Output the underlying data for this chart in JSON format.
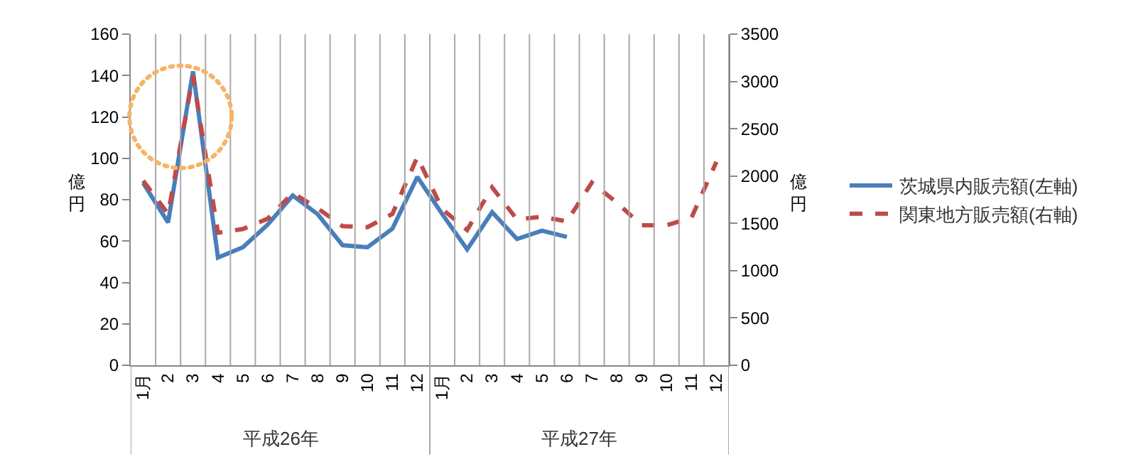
{
  "chart_data": {
    "type": "line",
    "categories": [
      "1月",
      "2",
      "3",
      "4",
      "5",
      "6",
      "7",
      "8",
      "9",
      "10",
      "11",
      "12",
      "1月",
      "2",
      "3",
      "4",
      "5",
      "6",
      "7",
      "8",
      "9",
      "10",
      "11",
      "12"
    ],
    "series": [
      {
        "name": "茨城県内販売額(左軸)",
        "color": "#4a7ebb",
        "values": [
          88,
          69,
          142,
          52,
          57,
          68,
          82,
          73,
          58,
          57,
          66,
          91,
          73,
          56,
          74,
          61,
          65,
          62,
          null,
          null,
          null,
          null,
          null,
          null
        ]
      },
      {
        "name": "関東地方販売額(右軸)",
        "color": "#be4b48",
        "axis": "y2",
        "line_style": "dashed",
        "values": [
          1950,
          1600,
          3060,
          1400,
          1440,
          1550,
          1820,
          1660,
          1470,
          1460,
          1600,
          2200,
          1650,
          1430,
          1880,
          1540,
          1570,
          1520,
          1930,
          1720,
          1480,
          1480,
          1560,
          2150
        ]
      }
    ],
    "ylabel": "億円",
    "y2label": "億円",
    "ylim": [
      0,
      160
    ],
    "yticks": [
      0,
      20,
      40,
      60,
      80,
      100,
      120,
      140,
      160
    ],
    "y2lim": [
      0,
      3500
    ],
    "y2ticks": [
      0,
      500,
      1000,
      1500,
      2000,
      2500,
      3000,
      3500
    ],
    "annotations": [
      "平成26年",
      "平成27年"
    ],
    "grid": "x",
    "legend": "right",
    "marker": "none"
  }
}
